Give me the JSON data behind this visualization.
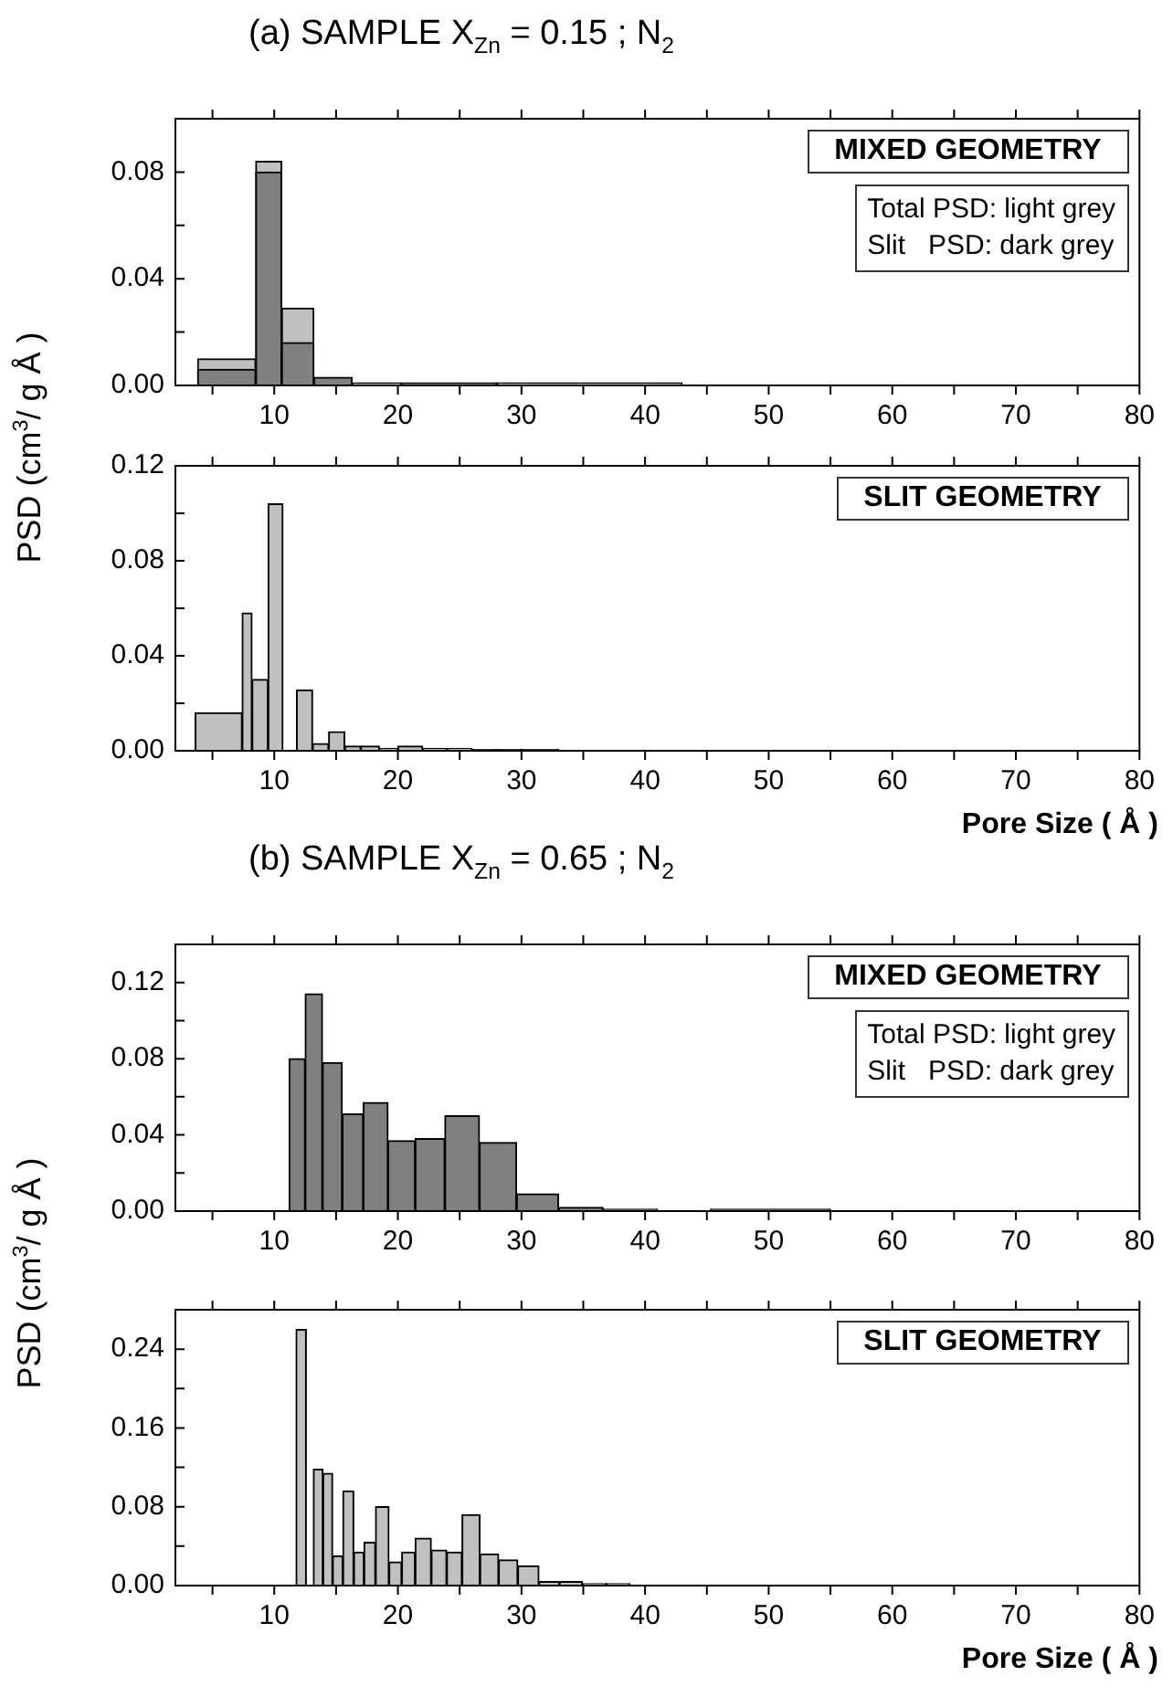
{
  "chart_data": [
    {
      "type": "histogram",
      "title": "(a) SAMPLE X$_{Zn}$ = 0.15 ; N$_{2}$",
      "ylabel": "PSD (cm$^{3}$/ g Å )",
      "bins": [
        3.8,
        8.5,
        10.6,
        13.2,
        16.3,
        20.3,
        28,
        43
      ],
      "series": [
        {
          "color": "#c0c0c0",
          "values": [
            0.01,
            0.084,
            0.029,
            null,
            0.001,
            null,
            0.001
          ]
        },
        {
          "color": "#808080",
          "values": [
            0.006,
            0.08,
            0.016,
            0.003,
            null,
            0.001,
            null
          ]
        }
      ],
      "xlim": [
        2,
        80
      ],
      "xticks": [
        {
          "value": 5,
          "label": null
        },
        10,
        {
          "value": 15,
          "label": null
        },
        20,
        {
          "value": 25,
          "label": null
        },
        30,
        {
          "value": 35,
          "label": null
        },
        40,
        {
          "value": 45,
          "label": null
        },
        50,
        {
          "value": 55,
          "label": null
        },
        60,
        {
          "value": 65,
          "label": null
        },
        70,
        {
          "value": 75,
          "label": null
        },
        80
      ],
      "ylim": [
        0,
        0.1
      ],
      "yticks": [
        {
          "value": 0,
          "label": "0.00"
        },
        {
          "value": 0.02,
          "label": null
        },
        {
          "value": 0.04,
          "label": "0.04"
        },
        {
          "value": 0.06,
          "label": null
        },
        {
          "value": 0.08,
          "label": "0.08"
        }
      ],
      "annotations": [
        "MIXED GEOMETRY",
        "Total PSD: light grey",
        "Slit   PSD: dark grey"
      ]
    },
    {
      "type": "histogram",
      "xlabel": "Pore Size ( Å )",
      "bins": [
        3.6,
        7.4,
        8.2,
        9.5,
        10.7,
        11.8,
        13.1,
        14.4,
        15.7,
        17,
        18.5,
        20,
        22,
        24,
        26,
        28,
        30,
        33
      ],
      "series": [
        {
          "color": "#c0c0c0",
          "values": [
            0.016,
            0.058,
            0.03,
            0.104,
            0,
            0.0256,
            0.003,
            0.008,
            0.002,
            0.002,
            0.001,
            0.002,
            0.001,
            0.001,
            0.0005,
            0.0005,
            0.0005
          ]
        }
      ],
      "xlim": [
        2,
        80
      ],
      "xticks": [
        {
          "value": 5,
          "label": null
        },
        10,
        {
          "value": 15,
          "label": null
        },
        20,
        {
          "value": 25,
          "label": null
        },
        30,
        {
          "value": 35,
          "label": null
        },
        40,
        {
          "value": 45,
          "label": null
        },
        50,
        {
          "value": 55,
          "label": null
        },
        60,
        {
          "value": 65,
          "label": null
        },
        70,
        {
          "value": 75,
          "label": null
        },
        80
      ],
      "ylim": [
        0,
        0.12
      ],
      "yticks": [
        {
          "value": 0,
          "label": "0.00"
        },
        {
          "value": 0.02,
          "label": null
        },
        {
          "value": 0.04,
          "label": "0.04"
        },
        {
          "value": 0.06,
          "label": null
        },
        {
          "value": 0.08,
          "label": "0.08"
        },
        {
          "value": 0.1,
          "label": null
        },
        {
          "value": 0.12,
          "label": "0.12"
        }
      ],
      "annotations": [
        "SLIT GEOMETRY"
      ]
    },
    {
      "type": "histogram",
      "title": "(b) SAMPLE X$_{Zn}$ = 0.65 ; N$_{2}$",
      "ylabel": "PSD (cm$^{3}$/ g Å )",
      "bins": [
        11.2,
        12.5,
        13.9,
        15.5,
        17.2,
        19.2,
        21.4,
        23.8,
        26.6,
        29.6,
        33,
        36.6,
        41,
        45.3,
        55
      ],
      "series": [
        {
          "color": "#808080",
          "values": [
            0.08,
            0.114,
            0.078,
            0.051,
            0.057,
            0.037,
            0.038,
            0.05,
            0.036,
            0.009,
            0.002,
            0.001,
            0,
            0.001
          ]
        }
      ],
      "xlim": [
        2,
        80
      ],
      "xticks": [
        {
          "value": 5,
          "label": null
        },
        10,
        {
          "value": 15,
          "label": null
        },
        20,
        {
          "value": 25,
          "label": null
        },
        30,
        {
          "value": 35,
          "label": null
        },
        40,
        {
          "value": 45,
          "label": null
        },
        50,
        {
          "value": 55,
          "label": null
        },
        60,
        {
          "value": 65,
          "label": null
        },
        70,
        {
          "value": 75,
          "label": null
        },
        80
      ],
      "ylim": [
        0,
        0.14
      ],
      "yticks": [
        {
          "value": 0,
          "label": "0.00"
        },
        {
          "value": 0.02,
          "label": null
        },
        {
          "value": 0.04,
          "label": "0.04"
        },
        {
          "value": 0.06,
          "label": null
        },
        {
          "value": 0.08,
          "label": "0.08"
        },
        {
          "value": 0.1,
          "label": null
        },
        {
          "value": 0.12,
          "label": "0.12"
        }
      ],
      "annotations": [
        "MIXED GEOMETRY",
        "Total PSD: light grey",
        "Slit   PSD: dark grey"
      ]
    },
    {
      "type": "histogram",
      "xlabel": "Pore Size ( Å )",
      "bins": [
        11.76,
        12.59,
        13.16,
        13.94,
        14.72,
        15.55,
        16.43,
        17.26,
        18.19,
        19.28,
        20.31,
        21.4,
        22.7,
        23.95,
        25.19,
        26.64,
        28.15,
        29.7,
        31.41,
        33.07,
        34.93,
        36.86,
        38.77
      ],
      "series": [
        {
          "color": "#c0c0c0",
          "values": [
            0.26,
            0,
            0.118,
            0.114,
            0.03,
            0.096,
            0.034,
            0.044,
            0.08,
            0.024,
            0.034,
            0.048,
            0.036,
            0.034,
            0.072,
            0.032,
            0.026,
            0.02,
            0.004,
            0.004,
            0.002,
            0.002
          ]
        }
      ],
      "xlim": [
        2,
        80
      ],
      "xticks": [
        {
          "value": 5,
          "label": null
        },
        10,
        {
          "value": 15,
          "label": null
        },
        20,
        {
          "value": 25,
          "label": null
        },
        30,
        {
          "value": 35,
          "label": null
        },
        40,
        {
          "value": 45,
          "label": null
        },
        50,
        {
          "value": 55,
          "label": null
        },
        60,
        {
          "value": 65,
          "label": null
        },
        70,
        {
          "value": 75,
          "label": null
        },
        80
      ],
      "ylim": [
        0,
        0.28
      ],
      "yticks": [
        {
          "value": 0,
          "label": "0.00"
        },
        {
          "value": 0.04,
          "label": null
        },
        {
          "value": 0.08,
          "label": "0.08"
        },
        {
          "value": 0.12,
          "label": null
        },
        {
          "value": 0.16,
          "label": "0.16"
        },
        {
          "value": 0.2,
          "label": null
        },
        {
          "value": 0.24,
          "label": "0.24"
        }
      ],
      "annotations": [
        "SLIT GEOMETRY"
      ]
    }
  ]
}
